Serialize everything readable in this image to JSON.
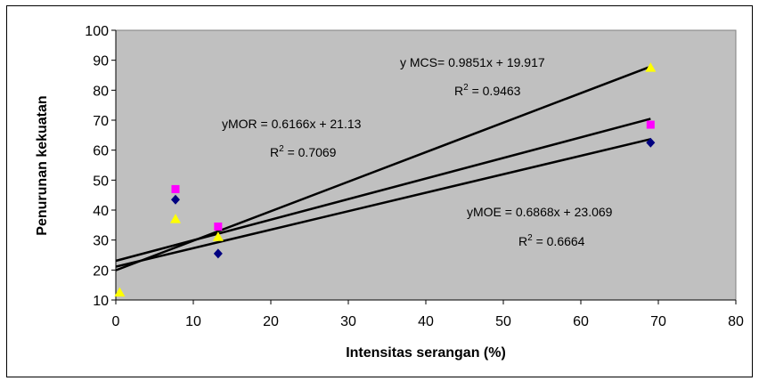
{
  "chart_data": {
    "type": "scatter",
    "title": "",
    "xlabel": "Intensitas serangan (%)",
    "ylabel": "Penurunan kekuatan",
    "xlim": [
      0,
      80
    ],
    "ylim": [
      10,
      100
    ],
    "xticks": [
      "0",
      "10",
      "20",
      "30",
      "40",
      "50",
      "60",
      "70",
      "80"
    ],
    "yticks": [
      "10",
      "20",
      "30",
      "40",
      "50",
      "60",
      "70",
      "80",
      "90",
      "100"
    ],
    "grid": false,
    "plot_bg": "#c0c0c0",
    "series": [
      {
        "key": "moe",
        "color": "#000080",
        "marker": "diamond",
        "points": [
          [
            7.7,
            43.5
          ],
          [
            13.2,
            25.5
          ],
          [
            69,
            62.5
          ]
        ],
        "trend": {
          "slope": 0.6868,
          "intercept": 23.069,
          "x0": 0,
          "x1": 69
        }
      },
      {
        "key": "mor",
        "color": "#ff00ff",
        "marker": "square",
        "points": [
          [
            7.7,
            47
          ],
          [
            13.2,
            34.5
          ],
          [
            69,
            68.5
          ]
        ],
        "trend": {
          "slope": 0.6166,
          "intercept": 21.13,
          "x0": 0,
          "x1": 69
        }
      },
      {
        "key": "mcs",
        "color": "#ffff00",
        "marker": "triangle",
        "points": [
          [
            0.5,
            12.5
          ],
          [
            7.7,
            37
          ],
          [
            13.2,
            31
          ],
          [
            69,
            87.5
          ]
        ],
        "trend": {
          "slope": 0.9851,
          "intercept": 19.917,
          "x0": 0,
          "x1": 69
        }
      }
    ],
    "annotations": {
      "mcs_eq": "y MCS= 0.9851x + 19.917",
      "mcs_r2_base": "R",
      "mcs_r2_exp": "2",
      "mcs_r2_val": " = 0.9463",
      "mor_eq": "yMOR = 0.6166x + 21.13",
      "mor_r2_base": "R",
      "mor_r2_exp": "2",
      "mor_r2_val": " = 0.7069",
      "moe_eq": "yMOE = 0.6868x + 23.069",
      "moe_r2_base": "R",
      "moe_r2_exp": "2",
      "moe_r2_val": " = 0.6664"
    }
  }
}
